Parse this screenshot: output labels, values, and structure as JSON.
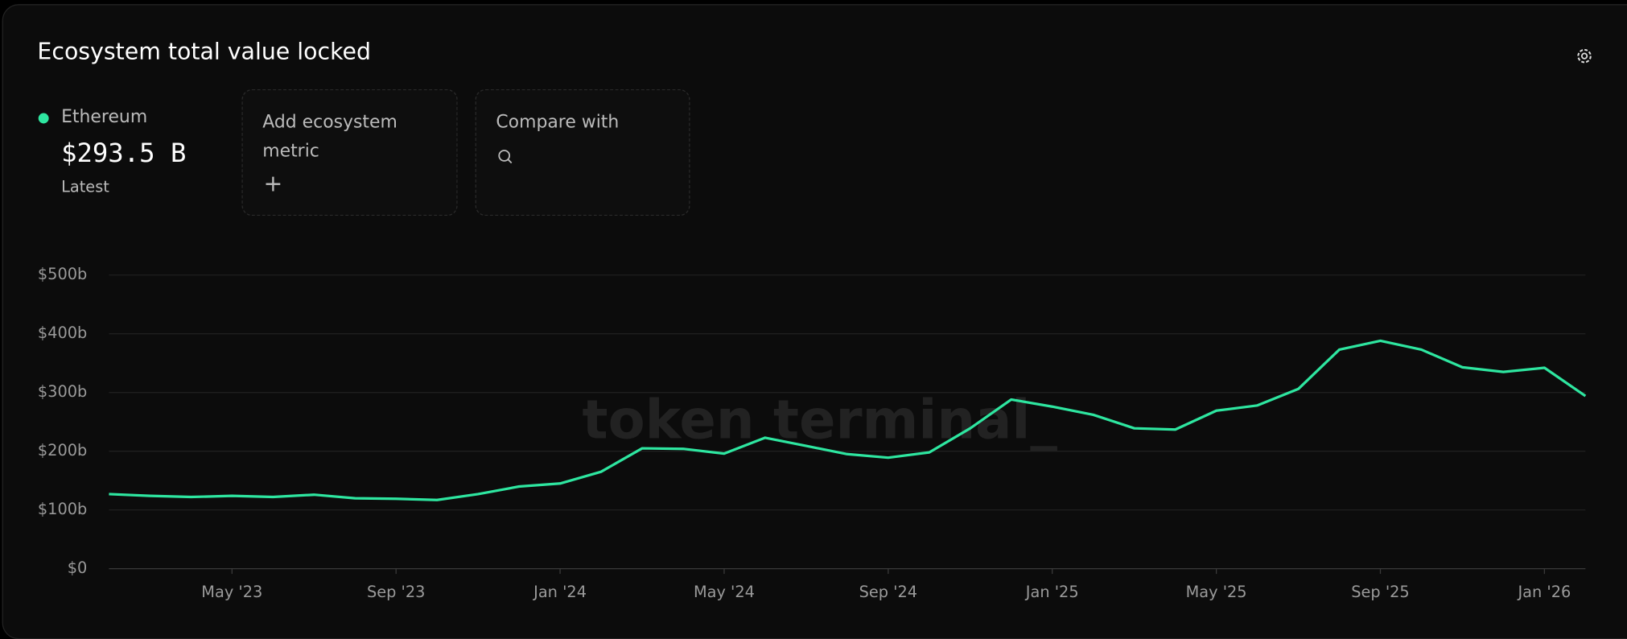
{
  "header": {
    "title": "Ecosystem total value locked"
  },
  "summary": {
    "latest_value": "$293.5 B",
    "latest_label": "Latest"
  },
  "controls": {
    "add_metric": "Add ecosystem metric",
    "compare": "Compare with"
  },
  "watermark": "token terminal_",
  "chart_data": {
    "type": "line",
    "x": [
      "2023-02",
      "2023-03",
      "2023-04",
      "2023-05",
      "2023-06",
      "2023-07",
      "2023-08",
      "2023-09",
      "2023-10",
      "2023-11",
      "2023-12",
      "2024-01",
      "2024-02",
      "2024-03",
      "2024-04",
      "2024-05",
      "2024-06",
      "2024-07",
      "2024-08",
      "2024-09",
      "2024-10",
      "2024-11",
      "2024-12",
      "2025-01",
      "2025-02",
      "2025-03",
      "2025-04",
      "2025-05",
      "2025-06",
      "2025-07",
      "2025-08",
      "2025-09",
      "2025-10",
      "2025-11",
      "2025-12",
      "2026-01",
      "2026-02"
    ],
    "series": [
      {
        "name": "Ethereum",
        "color": "#2ee6a0",
        "values": [
          127,
          124,
          122,
          124,
          122,
          126,
          120,
          119,
          117,
          127,
          140,
          145,
          165,
          205,
          204,
          196,
          223,
          209,
          195,
          189,
          198,
          239,
          288,
          276,
          262,
          239,
          237,
          269,
          278,
          306,
          373,
          388,
          373,
          343,
          335,
          342,
          294
        ]
      }
    ],
    "xlim": [
      "2023-02",
      "2026-02"
    ],
    "xticks": [
      {
        "value": "2023-05",
        "label": "May '23"
      },
      {
        "value": "2023-09",
        "label": "Sep '23"
      },
      {
        "value": "2024-01",
        "label": "Jan '24"
      },
      {
        "value": "2024-05",
        "label": "May '24"
      },
      {
        "value": "2024-09",
        "label": "Sep '24"
      },
      {
        "value": "2025-01",
        "label": "Jan '25"
      },
      {
        "value": "2025-05",
        "label": "May '25"
      },
      {
        "value": "2025-09",
        "label": "Sep '25"
      },
      {
        "value": "2026-01",
        "label": "Jan '26"
      }
    ],
    "ylim": [
      0,
      500
    ],
    "yticks": [
      {
        "value": 0,
        "label": "$0"
      },
      {
        "value": 100,
        "label": "$100b"
      },
      {
        "value": 200,
        "label": "$200b"
      },
      {
        "value": 300,
        "label": "$300b"
      },
      {
        "value": 400,
        "label": "$400b"
      },
      {
        "value": 500,
        "label": "$500b"
      }
    ],
    "grid": true
  }
}
